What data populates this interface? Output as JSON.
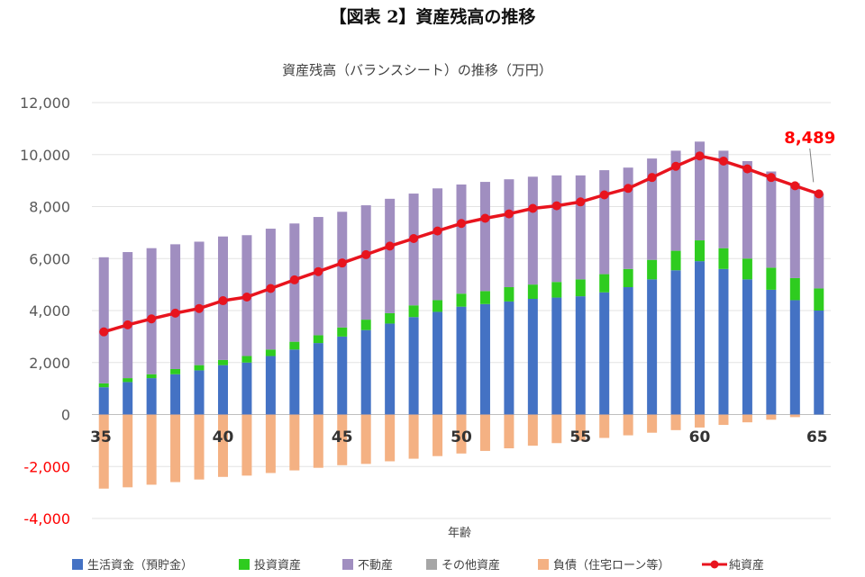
{
  "figure_title": "【図表 2】資産残高の推移",
  "chart_data": {
    "type": "bar",
    "stacked": true,
    "title": "資産残高（バランスシート）の推移（万円）",
    "xlabel": "年齢",
    "ylabel": "",
    "ylim": [
      -4000,
      12000
    ],
    "yticks": [
      -4000,
      -2000,
      0,
      2000,
      4000,
      6000,
      8000,
      10000,
      12000
    ],
    "ytick_labels": [
      "-4,000",
      "-2,000",
      "0",
      "2,000",
      "4,000",
      "6,000",
      "8,000",
      "10,000",
      "12,000"
    ],
    "xtick_labels": [
      "35",
      "40",
      "45",
      "50",
      "55",
      "60",
      "65"
    ],
    "x": [
      35,
      36,
      37,
      38,
      39,
      40,
      41,
      42,
      43,
      44,
      45,
      46,
      47,
      48,
      49,
      50,
      51,
      52,
      53,
      54,
      55,
      56,
      57,
      58,
      59,
      60,
      61,
      62,
      63,
      64,
      65
    ],
    "grid": true,
    "legend_position": "bottom",
    "series": [
      {
        "name": "生活資金（預貯金）",
        "color": "#4472c4",
        "values": [
          1050,
          1250,
          1400,
          1550,
          1700,
          1900,
          2000,
          2250,
          2500,
          2750,
          3000,
          3250,
          3500,
          3750,
          3950,
          4150,
          4250,
          4350,
          4450,
          4500,
          4550,
          4700,
          4900,
          5200,
          5550,
          5900,
          5600,
          5200,
          4800,
          4400,
          4000
        ]
      },
      {
        "name": "投資資産",
        "color": "#2ecc1f",
        "values": [
          150,
          150,
          150,
          200,
          200,
          200,
          250,
          250,
          300,
          300,
          350,
          400,
          400,
          450,
          450,
          500,
          500,
          550,
          550,
          600,
          650,
          700,
          700,
          750,
          750,
          800,
          800,
          800,
          850,
          850,
          850
        ]
      },
      {
        "name": "不動産",
        "color": "#a08ec0",
        "values": [
          4850,
          4850,
          4850,
          4800,
          4750,
          4750,
          4650,
          4650,
          4550,
          4550,
          4450,
          4400,
          4400,
          4300,
          4300,
          4200,
          4200,
          4150,
          4150,
          4100,
          4000,
          4000,
          3900,
          3900,
          3850,
          3800,
          3750,
          3750,
          3700,
          3650,
          3650
        ]
      },
      {
        "name": "その他資産",
        "color": "#a6a6a6",
        "values": [
          0,
          0,
          0,
          0,
          0,
          0,
          0,
          0,
          0,
          0,
          0,
          0,
          0,
          0,
          0,
          0,
          0,
          0,
          0,
          0,
          0,
          0,
          0,
          0,
          0,
          0,
          0,
          0,
          0,
          0,
          0
        ]
      },
      {
        "name": "負債（住宅ローン等）",
        "color": "#f4b183",
        "values": [
          -2850,
          -2800,
          -2700,
          -2600,
          -2500,
          -2400,
          -2350,
          -2250,
          -2150,
          -2050,
          -1950,
          -1900,
          -1800,
          -1700,
          -1600,
          -1500,
          -1400,
          -1300,
          -1200,
          -1100,
          -1000,
          -900,
          -800,
          -700,
          -600,
          -500,
          -400,
          -300,
          -200,
          -100,
          0
        ]
      },
      {
        "name": "純資産",
        "type": "line",
        "color": "#e8141e",
        "values": [
          3180,
          3450,
          3680,
          3900,
          4080,
          4380,
          4520,
          4850,
          5180,
          5500,
          5830,
          6150,
          6480,
          6770,
          7060,
          7350,
          7550,
          7720,
          7930,
          8030,
          8180,
          8450,
          8700,
          9120,
          9550,
          9950,
          9750,
          9450,
          9120,
          8800,
          8489
        ]
      }
    ],
    "annotations": [
      {
        "text": "8,489",
        "x": 65,
        "series": "純資産"
      }
    ]
  }
}
